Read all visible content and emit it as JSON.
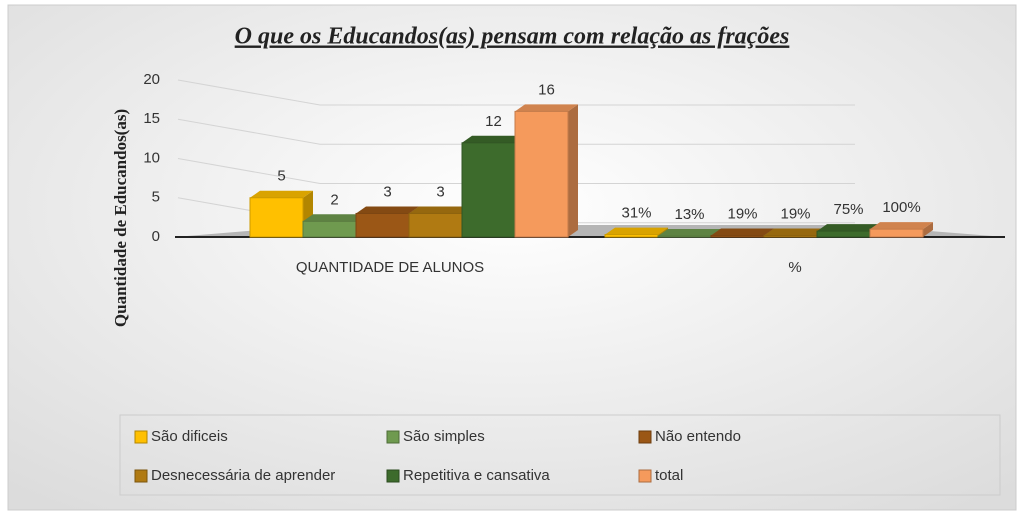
{
  "chart_data": {
    "type": "bar3d",
    "title": "O que os Educandos(as) pensam com relação as frações",
    "y_label": "Quantidade de Educandos(as)",
    "categories": [
      "QUANTIDADE DE ALUNOS",
      "%"
    ],
    "ylim": [
      0,
      20
    ],
    "yticks": [
      0,
      5,
      10,
      15,
      20
    ],
    "grid": true,
    "legend": "bottom",
    "series": [
      {
        "name": "São dificeis",
        "color": "#ffc000",
        "values": [
          5,
          0.31
        ],
        "value_labels": [
          "5",
          "31%"
        ]
      },
      {
        "name": "São simples",
        "color": "#6f9a4f",
        "values": [
          2,
          0.13
        ],
        "value_labels": [
          "2",
          "13%"
        ]
      },
      {
        "name": "Não entendo",
        "color": "#9b5716",
        "values": [
          3,
          0.19
        ],
        "value_labels": [
          "3",
          "19%"
        ]
      },
      {
        "name": "Desnecessária de aprender",
        "color": "#b07a12",
        "values": [
          3,
          0.19
        ],
        "value_labels": [
          "3",
          "19%"
        ]
      },
      {
        "name": "Repetitiva e cansativa",
        "color": "#3d6b2c",
        "values": [
          12,
          0.75
        ],
        "value_labels": [
          "12",
          "75%"
        ]
      },
      {
        "name": "total",
        "color": "#f59a5c",
        "values": [
          16,
          1
        ],
        "value_labels": [
          "16",
          "100%"
        ]
      }
    ]
  }
}
